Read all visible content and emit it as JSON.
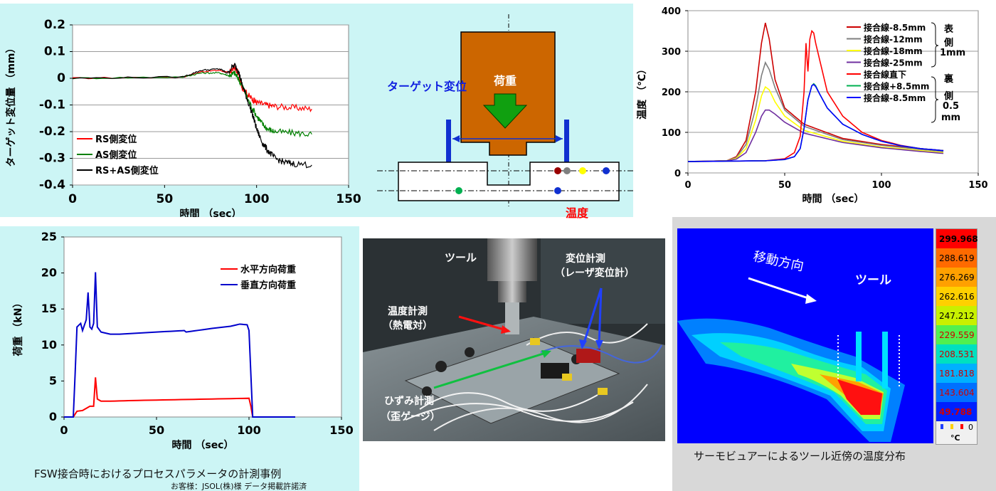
{
  "chart_data": [
    {
      "type": "line",
      "xlabel": "時間 （sec）",
      "ylabel": "ターゲット変位量 （mm）",
      "xlim": [
        0,
        150
      ],
      "ylim": [
        -0.4,
        0.2
      ],
      "xticks": [
        "0",
        "50",
        "100",
        "150"
      ],
      "yticks": [
        "0.2",
        "0.1",
        "0",
        "-0.1",
        "-0.2",
        "-0.3",
        "-0.4"
      ],
      "grid": "horizontal",
      "legend_position": "lower-left",
      "series": [
        {
          "name": "RS側変位",
          "color": "#ff0000",
          "x": [
            0,
            60,
            70,
            80,
            85,
            88,
            90,
            92,
            95,
            98,
            100,
            105,
            110,
            120,
            130
          ],
          "y": [
            0,
            0.005,
            0.025,
            0.03,
            0.02,
            0.04,
            0.02,
            -0.03,
            -0.06,
            -0.08,
            -0.09,
            -0.1,
            -0.105,
            -0.11,
            -0.115
          ]
        },
        {
          "name": "AS側変位",
          "color": "#008000",
          "x": [
            0,
            60,
            70,
            80,
            85,
            88,
            90,
            93,
            96,
            100,
            103,
            106,
            110,
            120,
            130
          ],
          "y": [
            0,
            0.005,
            0.02,
            0.02,
            0.01,
            0.02,
            0.0,
            -0.04,
            -0.09,
            -0.14,
            -0.17,
            -0.19,
            -0.2,
            -0.205,
            -0.21
          ]
        },
        {
          "name": "RS+AS側変位",
          "color": "#000000",
          "x": [
            0,
            60,
            70,
            80,
            84,
            88,
            90,
            92,
            95,
            98,
            100,
            103,
            106,
            110,
            115,
            120,
            130
          ],
          "y": [
            0,
            0.005,
            0.03,
            0.035,
            0.02,
            0.05,
            0.03,
            -0.02,
            -0.08,
            -0.14,
            -0.19,
            -0.24,
            -0.27,
            -0.3,
            -0.315,
            -0.32,
            -0.325
          ]
        }
      ]
    },
    {
      "type": "line",
      "xlabel": "時間 （sec）",
      "ylabel": "温度 （℃）",
      "xlim": [
        0,
        150
      ],
      "ylim": [
        0,
        400
      ],
      "xticks": [
        "0",
        "50",
        "100",
        "150"
      ],
      "yticks": [
        "400",
        "300",
        "200",
        "100",
        "0"
      ],
      "grid": "horizontal",
      "legend_position": "top-right",
      "series": [
        {
          "name": "接合線-8.5mm",
          "color": "#cc0000",
          "x": [
            0,
            20,
            25,
            30,
            35,
            38,
            40,
            42,
            45,
            50,
            60,
            80,
            100,
            120,
            132
          ],
          "y": [
            28,
            30,
            40,
            80,
            200,
            320,
            370,
            330,
            230,
            160,
            120,
            85,
            70,
            60,
            55
          ]
        },
        {
          "name": "接合線-12mm",
          "color": "#7f7f7f",
          "x": [
            0,
            20,
            25,
            30,
            35,
            38,
            40,
            42,
            45,
            50,
            60,
            80,
            100,
            120,
            132
          ],
          "y": [
            28,
            30,
            38,
            70,
            160,
            240,
            272,
            255,
            210,
            155,
            115,
            82,
            68,
            58,
            53
          ]
        },
        {
          "name": "接合線-18mm",
          "color": "#ffff00",
          "x": [
            0,
            20,
            25,
            30,
            35,
            38,
            40,
            42,
            45,
            50,
            60,
            80,
            100,
            120,
            132
          ],
          "y": [
            28,
            30,
            36,
            60,
            130,
            190,
            212,
            205,
            175,
            140,
            105,
            78,
            64,
            55,
            50
          ]
        },
        {
          "name": "接合線-25mm",
          "color": "#7030a0",
          "x": [
            0,
            20,
            25,
            30,
            35,
            38,
            40,
            42,
            45,
            50,
            60,
            80,
            100,
            120,
            132
          ],
          "y": [
            28,
            30,
            34,
            50,
            100,
            140,
            155,
            155,
            145,
            125,
            98,
            75,
            62,
            53,
            48
          ]
        },
        {
          "name": "接合線直下",
          "color": "#ff0000",
          "x": [
            0,
            40,
            50,
            55,
            58,
            60,
            61,
            62,
            63,
            64,
            65,
            66,
            68,
            72,
            80,
            90,
            100,
            110,
            120,
            132
          ],
          "y": [
            28,
            30,
            35,
            50,
            90,
            200,
            320,
            250,
            330,
            350,
            345,
            320,
            280,
            200,
            140,
            100,
            80,
            68,
            60,
            55
          ]
        },
        {
          "name": "接合線+8.5mm",
          "color": "#00b050",
          "x": [
            0,
            40,
            50,
            55,
            58,
            60,
            62,
            64,
            65,
            66,
            68,
            72,
            80,
            90,
            100,
            110,
            120,
            132
          ],
          "y": [
            28,
            30,
            33,
            40,
            60,
            110,
            180,
            215,
            220,
            215,
            195,
            160,
            120,
            95,
            78,
            67,
            60,
            55
          ]
        },
        {
          "name": "接合線-8.5mm",
          "color": "#0000ff",
          "x": [
            0,
            40,
            50,
            55,
            58,
            60,
            62,
            64,
            65,
            66,
            68,
            72,
            80,
            90,
            100,
            110,
            120,
            132
          ],
          "y": [
            28,
            30,
            33,
            40,
            60,
            110,
            180,
            215,
            218,
            213,
            195,
            160,
            120,
            95,
            78,
            67,
            60,
            55
          ]
        }
      ]
    },
    {
      "type": "line",
      "xlabel": "時間 （sec）",
      "ylabel": "荷重 （kN）",
      "xlim": [
        0,
        150
      ],
      "ylim": [
        0,
        25
      ],
      "xticks": [
        "0",
        "50",
        "100",
        "150"
      ],
      "yticks": [
        "25",
        "20",
        "15",
        "10",
        "5",
        "0"
      ],
      "grid": "none",
      "legend_position": "top-right",
      "series": [
        {
          "name": "水平方向荷重",
          "color": "#ff0000",
          "x": [
            0,
            5,
            7,
            10,
            14,
            16,
            17,
            18,
            20,
            25,
            40,
            60,
            80,
            100,
            101,
            102,
            125
          ],
          "y": [
            0,
            0,
            0.8,
            0.9,
            1.5,
            1.5,
            5.5,
            2.5,
            2.2,
            2.2,
            2.3,
            2.4,
            2.5,
            2.6,
            1.5,
            0,
            0
          ]
        },
        {
          "name": "垂直方向荷重",
          "color": "#0000cc",
          "x": [
            0,
            5,
            6,
            7,
            9,
            10,
            12,
            13,
            14,
            15,
            16,
            17,
            18,
            20,
            25,
            30,
            50,
            65,
            66,
            80,
            90,
            95,
            99,
            100,
            101,
            102,
            125
          ],
          "y": [
            0,
            0,
            6,
            12.5,
            13,
            12,
            13.5,
            17.3,
            12.5,
            12.2,
            13,
            20.1,
            12.5,
            11.8,
            11.5,
            11.5,
            11.8,
            12,
            11.8,
            12.3,
            12.6,
            12.9,
            12.8,
            12,
            6,
            0,
            0
          ]
        }
      ]
    }
  ],
  "diagram": {
    "load_label": "荷重",
    "target_label": "ターゲット変位",
    "temp_label": "温度"
  },
  "photo": {
    "tool_label": "ツール",
    "disp_label_1": "変位計測",
    "disp_label_2": "（レーザ変位計）",
    "temp_label_1": "温度計測",
    "temp_label_2": "（熱電対）",
    "strain_label_1": "ひずみ計測",
    "strain_label_2": "（歪ゲージ）"
  },
  "thermo": {
    "direction_label": "移動方向",
    "tool_label": "ツール",
    "scale_values": [
      "299.968",
      "288.619",
      "276.269",
      "262.616",
      "247.212",
      "229.559",
      "208.531",
      "181.818",
      "143.604",
      "49.788"
    ],
    "scale_colors": [
      "#ff0000",
      "#ff6a00",
      "#ffa000",
      "#ffd000",
      "#c8f000",
      "#50f050",
      "#00e0c0",
      "#00b0ff",
      "#0070ff",
      "#0020ff"
    ],
    "scale_text_colors": [
      "#000000",
      "#000000",
      "#000000",
      "#000000",
      "#000000",
      "#d00000",
      "#d00000",
      "#d00000",
      "#d00000",
      "#d00000"
    ],
    "zero_label": "0",
    "unit_label": "°C"
  },
  "captions": {
    "fsw_caption": "FSW接合時におけるプロセスパラメータの計測事例",
    "customer_note": "お客様：JSOL(株)様 データ掲載許諾済",
    "thermo_caption": "サーモビュアーによるツール近傍の温度分布"
  },
  "legend_brackets": {
    "top_group": [
      "表",
      "側",
      "1mm"
    ],
    "bottom_group": [
      "裏",
      "側",
      "0.5",
      "mm"
    ]
  }
}
